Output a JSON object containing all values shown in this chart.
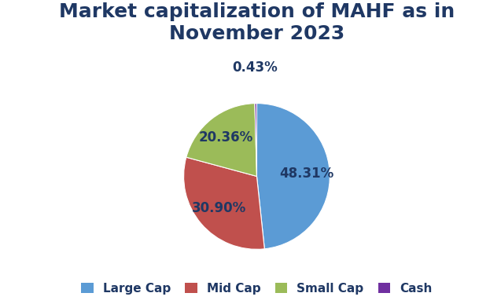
{
  "title": "Market capitalization of MAHF as in\nNovember 2023",
  "title_fontsize": 18,
  "title_color": "#1f3864",
  "title_fontweight": "bold",
  "slices": [
    48.31,
    30.9,
    20.36,
    0.43
  ],
  "labels": [
    "Large Cap",
    "Mid Cap",
    "Small Cap",
    "Cash"
  ],
  "colors": [
    "#5b9bd5",
    "#c0504d",
    "#9bbb59",
    "#7030a0"
  ],
  "autopct_fontsize": 12,
  "autopct_color": "#1f3864",
  "legend_fontsize": 11,
  "background_color": "#ffffff",
  "startangle": 90,
  "counterclock": false,
  "pctdistance": 0.68,
  "legend_labels": [
    "Large Cap",
    "Mid Cap",
    "Small Cap",
    "Cash"
  ]
}
